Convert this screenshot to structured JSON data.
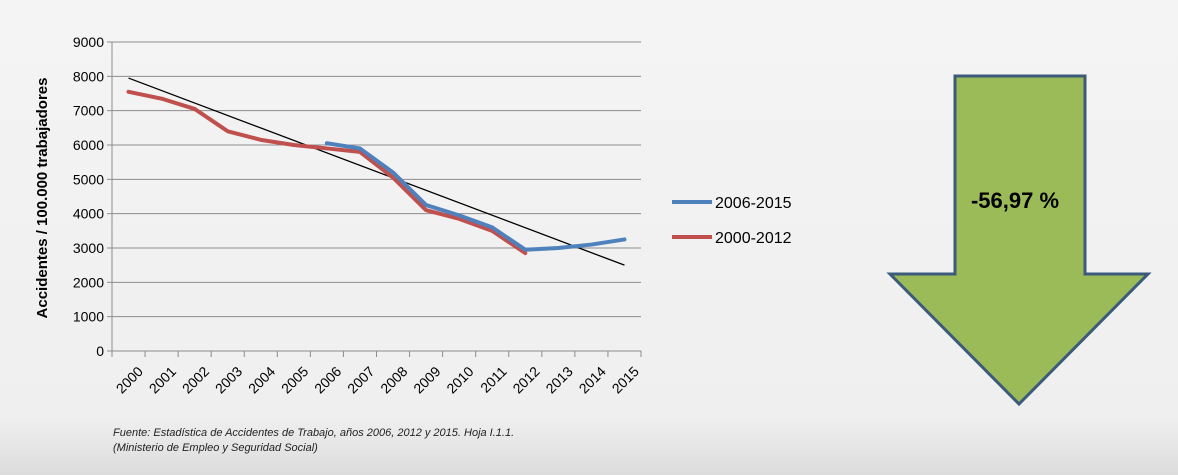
{
  "chart_data": {
    "type": "line",
    "categories": [
      "2000",
      "2001",
      "2002",
      "2003",
      "2004",
      "2005",
      "2006",
      "2007",
      "2008",
      "2009",
      "2010",
      "2011",
      "2012",
      "2013",
      "2014",
      "2015"
    ],
    "ylabel": "Accidentes / 100.000 trabajadores",
    "ylim": [
      0,
      9000
    ],
    "yticks": [
      0,
      1000,
      2000,
      3000,
      4000,
      5000,
      6000,
      7000,
      8000,
      9000
    ],
    "grid": true,
    "legend_position": "right",
    "series": [
      {
        "name": "2006-2015",
        "color": "#4f81bd",
        "values": [
          null,
          null,
          null,
          null,
          null,
          null,
          6050,
          5900,
          5200,
          4250,
          3950,
          3600,
          2950,
          3000,
          3100,
          3250
        ]
      },
      {
        "name": "2000-2012",
        "color": "#c0504d",
        "values": [
          7550,
          7350,
          7050,
          6400,
          6150,
          6000,
          5900,
          5800,
          5050,
          4100,
          3850,
          3500,
          2850,
          null,
          null,
          null
        ]
      }
    ],
    "trendline": {
      "color": "#000000",
      "from": {
        "x": "2000",
        "y": 7950
      },
      "to": {
        "x": "2015",
        "y": 2500
      }
    }
  },
  "annotation": {
    "percent_change": "-56,97 %",
    "arrow_fill": "#9bbb59",
    "arrow_stroke": "#3c5a7a"
  },
  "source": {
    "line1": "Fuente: Estadística de Accidentes de Trabajo, años 2006, 2012 y 2015. Hoja I.1.1.",
    "line2": "(Ministerio de Empleo y Seguridad Social)"
  }
}
